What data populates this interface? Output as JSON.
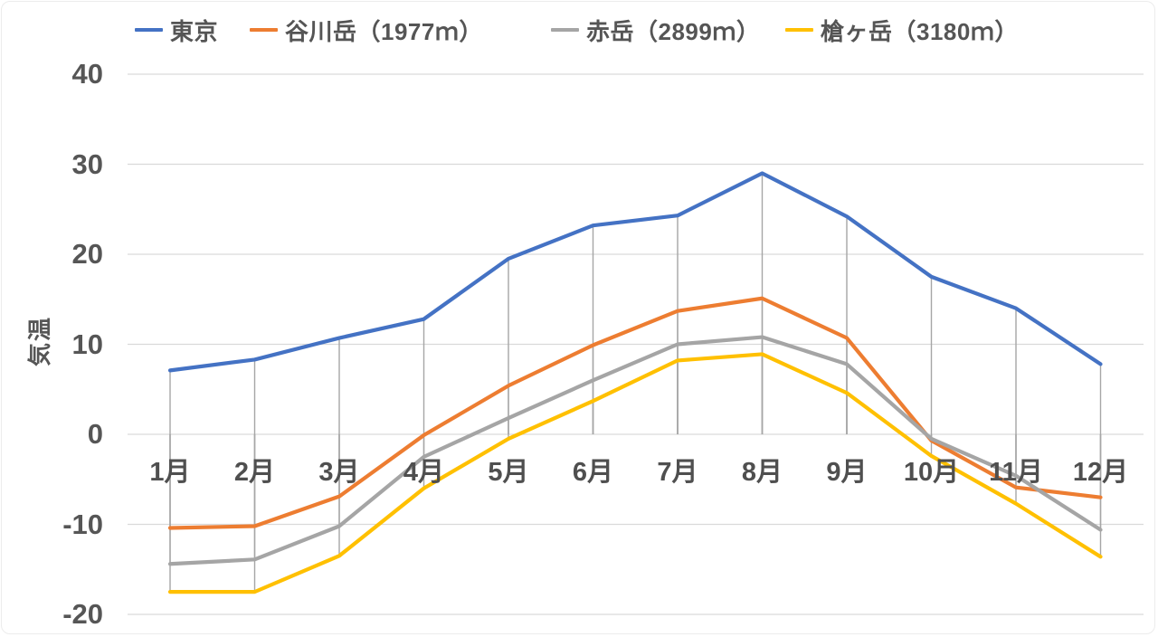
{
  "chart_data": {
    "type": "line",
    "title": "",
    "ylabel": "気温",
    "xlabel": "",
    "ylim": [
      -20,
      40
    ],
    "yticks": [
      40,
      30,
      20,
      10,
      0,
      -10,
      -20
    ],
    "categories": [
      "1月",
      "2月",
      "3月",
      "4月",
      "5月",
      "6月",
      "7月",
      "8月",
      "9月",
      "10月",
      "11月",
      "12月"
    ],
    "series": [
      {
        "name": "東京",
        "color": "#4472C4",
        "values": [
          7.1,
          8.3,
          10.7,
          12.8,
          19.5,
          23.2,
          24.3,
          29.0,
          24.2,
          17.5,
          14.0,
          7.8
        ]
      },
      {
        "name": "谷川岳（1977ｍ）",
        "color": "#ED7D31",
        "values": [
          -10.4,
          -10.2,
          -6.9,
          -0.1,
          5.4,
          9.9,
          13.7,
          15.1,
          10.7,
          -0.7,
          -5.9,
          -7.0
        ]
      },
      {
        "name": "赤岳（2899ｍ）",
        "color": "#A5A5A5",
        "values": [
          -14.4,
          -13.9,
          -10.2,
          -2.5,
          1.8,
          6.0,
          10.0,
          10.8,
          7.8,
          -0.5,
          -4.6,
          -10.6
        ]
      },
      {
        "name": "槍ヶ岳（3180ｍ）",
        "color": "#FFC000",
        "values": [
          -17.5,
          -17.5,
          -13.5,
          -6.0,
          -0.5,
          3.7,
          8.2,
          8.9,
          4.6,
          -2.4,
          -7.7,
          -13.6
        ]
      }
    ],
    "grid": true,
    "drop_lines_to_axis": true,
    "legend_position": "top",
    "colors": {
      "gridline": "#D9D9D9",
      "dropline": "#A6A6A6",
      "label_text": "#565656"
    }
  }
}
